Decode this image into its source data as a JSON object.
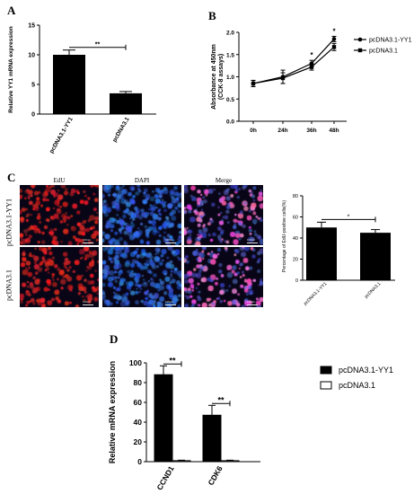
{
  "panels": {
    "A": "A",
    "B": "B",
    "C": "C",
    "D": "D"
  },
  "microscopy": {
    "columns": [
      "EdU",
      "DAPI",
      "Merge"
    ],
    "rows": [
      "pcDNA3.1-YY1",
      "pcDNA3.1"
    ],
    "scale_text": "100um",
    "colors": {
      "edu": "#e01818",
      "dapi": "#2b6ae8",
      "bg": "#080616"
    }
  },
  "chart_data": [
    {
      "id": "A",
      "type": "bar",
      "categories": [
        "pcDNA3.1-YY1",
        "pcDNA3.1"
      ],
      "values": [
        10.0,
        3.5
      ],
      "errors": [
        0.8,
        0.3
      ],
      "ylabel": "Relative YY1 mRNA expression",
      "ylim": [
        0,
        15
      ],
      "yticks": [
        "0",
        "5",
        "10",
        "15"
      ],
      "significance": "**",
      "colors": {
        "bar": "#000000"
      }
    },
    {
      "id": "B",
      "type": "line",
      "x": [
        "0h",
        "24h",
        "36h",
        "48h"
      ],
      "ylabel": "Absorbance at 450nm\n(CCK-8 assays)",
      "ylim": [
        0.0,
        2.0
      ],
      "yticks": [
        "0.0",
        "0.5",
        "1.0",
        "1.5",
        "2.0"
      ],
      "series": [
        {
          "name": "pcDNA3.1-YY1",
          "values": [
            0.85,
            1.0,
            1.3,
            1.85
          ],
          "errors": [
            0.07,
            0.15,
            0.07,
            0.06
          ],
          "marker": "circle"
        },
        {
          "name": "pcDNA3.1",
          "values": [
            0.85,
            0.97,
            1.22,
            1.67
          ],
          "errors": [
            0.07,
            0.12,
            0.07,
            0.08
          ],
          "marker": "square"
        }
      ],
      "significance": [
        "",
        "",
        "*",
        "*"
      ],
      "legend": "top-right"
    },
    {
      "id": "C",
      "type": "bar",
      "categories": [
        "pcDNA3.1-YY1",
        "pcDNA3.1"
      ],
      "values": [
        50,
        45
      ],
      "errors": [
        5,
        3
      ],
      "ylabel": "Percentage of EdU-positive cells(%)",
      "ylim": [
        0,
        80
      ],
      "yticks": [
        "0",
        "20",
        "40",
        "60",
        "80"
      ],
      "significance": "*",
      "colors": {
        "bar": "#000000"
      }
    },
    {
      "id": "D",
      "type": "bar",
      "categories": [
        "CCND1",
        "CDK6"
      ],
      "series": [
        {
          "name": "pcDNA3.1-YY1",
          "values": [
            88,
            47
          ],
          "errors": [
            9,
            10
          ],
          "fill": "#000000"
        },
        {
          "name": "pcDNA3.1",
          "values": [
            1,
            1
          ],
          "errors": [
            0.5,
            0.5
          ],
          "fill": "#ffffff"
        }
      ],
      "ylabel": "Relative mRNA expression",
      "ylim": [
        0,
        100
      ],
      "yticks": [
        "0",
        "20",
        "40",
        "60",
        "80",
        "100"
      ],
      "significance": [
        "**",
        "**"
      ],
      "legend": "right"
    }
  ]
}
